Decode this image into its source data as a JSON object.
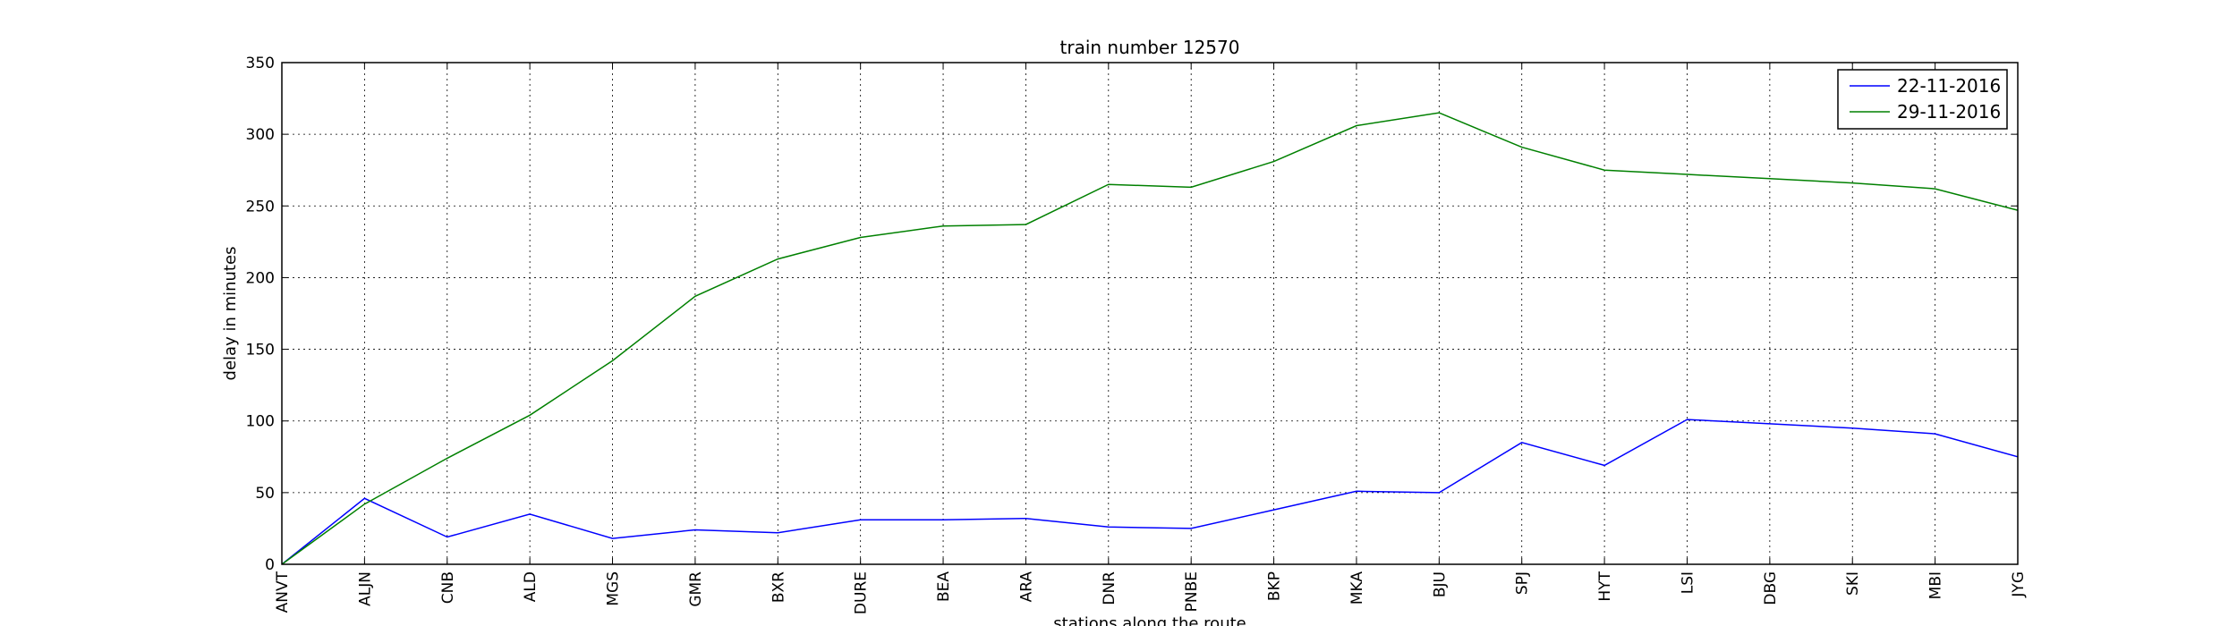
{
  "chart_data": {
    "type": "line",
    "title": "train number 12570",
    "xlabel": "stations along the route",
    "ylabel": "delay in minutes",
    "categories": [
      "ANVT",
      "ALJN",
      "CNB",
      "ALD",
      "MGS",
      "GMR",
      "BXR",
      "DURE",
      "BEA",
      "ARA",
      "DNR",
      "PNBE",
      "BKP",
      "MKA",
      "BJU",
      "SPJ",
      "HYT",
      "LSI",
      "DBG",
      "SKI",
      "MBI",
      "JYG"
    ],
    "ylim": [
      0,
      350
    ],
    "yticks": [
      0,
      50,
      100,
      150,
      200,
      250,
      300,
      350
    ],
    "grid": true,
    "legend_position": "top-right",
    "series": [
      {
        "name": "22-11-2016",
        "color": "#0000ff",
        "values": [
          0,
          46,
          19,
          35,
          18,
          24,
          22,
          31,
          31,
          32,
          26,
          25,
          38,
          51,
          50,
          85,
          69,
          101,
          98,
          95,
          91,
          75
        ]
      },
      {
        "name": "29-11-2016",
        "color": "#008000",
        "values": [
          0,
          42,
          74,
          104,
          142,
          187,
          213,
          228,
          236,
          237,
          265,
          263,
          281,
          306,
          315,
          291,
          275,
          272,
          269,
          266,
          262,
          247
        ]
      }
    ]
  }
}
